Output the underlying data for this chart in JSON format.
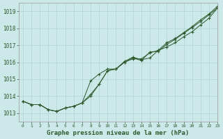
{
  "title": "Graphe pression niveau de la mer (hPa)",
  "background_color": "#cce8e8",
  "grid_color": "#aad4d4",
  "line_color": "#2d5a2d",
  "xlim": [
    -0.5,
    23
  ],
  "ylim": [
    1012.5,
    1019.5
  ],
  "yticks": [
    1013,
    1014,
    1015,
    1016,
    1017,
    1018,
    1019
  ],
  "xticks": [
    0,
    1,
    2,
    3,
    4,
    5,
    6,
    7,
    8,
    9,
    10,
    11,
    12,
    13,
    14,
    15,
    16,
    17,
    18,
    19,
    20,
    21,
    22,
    23
  ],
  "series1_x": [
    0,
    1,
    2,
    3,
    4,
    5,
    6,
    7,
    8,
    9,
    10,
    11,
    12,
    13,
    14,
    15,
    16,
    17,
    18,
    19,
    20,
    21,
    22,
    23
  ],
  "series1_y": [
    1013.7,
    1013.5,
    1013.5,
    1013.2,
    1013.1,
    1013.3,
    1013.4,
    1013.6,
    1014.9,
    1015.3,
    1015.6,
    1015.6,
    1016.0,
    1016.2,
    1016.2,
    1016.55,
    1016.7,
    1017.15,
    1017.4,
    1017.75,
    1018.1,
    1018.5,
    1018.85,
    1019.3
  ],
  "series2_x": [
    0,
    1,
    2,
    3,
    4,
    5,
    6,
    7,
    8,
    9,
    10,
    11,
    12,
    13,
    14,
    15,
    16,
    17,
    18,
    19,
    20,
    21,
    22,
    23
  ],
  "series2_y": [
    1013.7,
    1013.5,
    1013.5,
    1013.2,
    1013.1,
    1013.3,
    1013.4,
    1013.6,
    1014.1,
    1014.7,
    1015.5,
    1015.6,
    1016.0,
    1016.25,
    1016.1,
    1016.6,
    1016.65,
    1017.05,
    1017.35,
    1017.7,
    1018.05,
    1018.4,
    1018.8,
    1019.2
  ],
  "series3_x": [
    0,
    1,
    2,
    3,
    4,
    5,
    6,
    7,
    8,
    9,
    10,
    11,
    12,
    13,
    14,
    15,
    16,
    17,
    18,
    19,
    20,
    21,
    22,
    23
  ],
  "series3_y": [
    1013.7,
    1013.5,
    1013.5,
    1013.2,
    1013.1,
    1013.3,
    1013.4,
    1013.6,
    1014.0,
    1014.7,
    1015.5,
    1015.6,
    1016.05,
    1016.3,
    1016.15,
    1016.25,
    1016.7,
    1016.9,
    1017.15,
    1017.5,
    1017.8,
    1018.2,
    1018.6,
    1019.2
  ]
}
